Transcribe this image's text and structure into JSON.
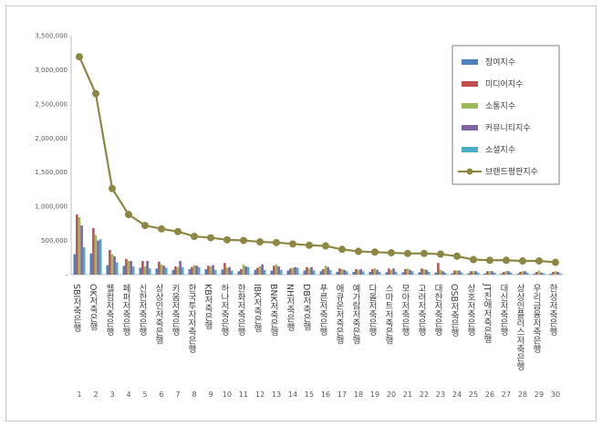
{
  "chart_data": {
    "type": "bar",
    "title": "",
    "xlabel": "",
    "ylabel": "",
    "ylim": [
      0,
      3500000
    ],
    "yticks": [
      0,
      500000,
      1000000,
      1500000,
      2000000,
      2500000,
      3000000,
      3500000
    ],
    "ytick_labels": [
      "-",
      "500,000",
      "1,000,000",
      "1,500,000",
      "2,000,000",
      "2,500,000",
      "3,000,000",
      "3,500,000"
    ],
    "grid": false,
    "legend_position": "top-right",
    "ranks": [
      "1",
      "2",
      "3",
      "4",
      "5",
      "6",
      "7",
      "8",
      "9",
      "10",
      "11",
      "12",
      "13",
      "14",
      "15",
      "16",
      "17",
      "18",
      "19",
      "20",
      "21",
      "22",
      "23",
      "24",
      "25",
      "26",
      "27",
      "28",
      "29",
      "30"
    ],
    "categories": [
      "SBI저축은행",
      "OK저축은행",
      "웰컴저축은행",
      "페퍼저축은행",
      "신한저축은행",
      "상상인저축은행",
      "키움저축은행",
      "한국투자저축은행",
      "KB저축은행",
      "하나저축은행",
      "한화저축은행",
      "IBK저축은행",
      "BNK저축은행",
      "NH저축은행",
      "DB저축은행",
      "푸른저축은행",
      "애큐온저축은행",
      "예가람저축은행",
      "다올저축은행",
      "스마트저축은행",
      "모아저축은행",
      "고려저축은행",
      "대한저축은행",
      "OSB저축은행",
      "상호저축은행",
      "JT친애저축은행",
      "대신저축은행",
      "상상인플러스저축은행",
      "우리금융저축은행",
      "한성저축은행"
    ],
    "series": [
      {
        "name": "참여지수",
        "color": "#4f81bd",
        "kind": "bar",
        "values": [
          300000,
          310000,
          140000,
          130000,
          100000,
          90000,
          70000,
          80000,
          80000,
          75000,
          50000,
          70000,
          60000,
          60000,
          60000,
          50000,
          40000,
          40000,
          40000,
          35000,
          35000,
          35000,
          30000,
          20000,
          20000,
          18000,
          18000,
          15000,
          15000,
          15000
        ]
      },
      {
        "name": "미디어지수",
        "color": "#c0504d",
        "kind": "bar",
        "values": [
          880000,
          680000,
          360000,
          230000,
          200000,
          190000,
          120000,
          110000,
          130000,
          170000,
          80000,
          100000,
          130000,
          90000,
          110000,
          80000,
          90000,
          80000,
          80000,
          90000,
          80000,
          90000,
          170000,
          60000,
          50000,
          50000,
          40000,
          40000,
          40000,
          40000
        ]
      },
      {
        "name": "소통지수",
        "color": "#9bbb59",
        "kind": "bar",
        "values": [
          840000,
          580000,
          300000,
          200000,
          120000,
          150000,
          110000,
          140000,
          120000,
          100000,
          150000,
          120000,
          150000,
          100000,
          90000,
          130000,
          80000,
          70000,
          90000,
          70000,
          90000,
          80000,
          70000,
          60000,
          50000,
          50000,
          50000,
          50000,
          60000,
          50000
        ]
      },
      {
        "name": "커뮤니티지수",
        "color": "#8064a2",
        "kind": "bar",
        "values": [
          720000,
          500000,
          270000,
          200000,
          200000,
          130000,
          200000,
          130000,
          140000,
          110000,
          120000,
          150000,
          120000,
          110000,
          110000,
          110000,
          70000,
          80000,
          70000,
          90000,
          70000,
          70000,
          50000,
          60000,
          50000,
          50000,
          50000,
          50000,
          30000,
          40000
        ]
      },
      {
        "name": "소셜지수",
        "color": "#4bacc6",
        "kind": "bar",
        "values": [
          400000,
          520000,
          180000,
          120000,
          90000,
          100000,
          110000,
          110000,
          70000,
          60000,
          110000,
          70000,
          70000,
          100000,
          60000,
          70000,
          50000,
          50000,
          40000,
          40000,
          50000,
          40000,
          30000,
          30000,
          30000,
          30000,
          30000,
          30000,
          20000,
          20000
        ]
      },
      {
        "name": "브랜드평판지수",
        "color": "#8c8743",
        "kind": "line",
        "values": [
          3190000,
          2650000,
          1260000,
          880000,
          720000,
          670000,
          630000,
          560000,
          540000,
          510000,
          500000,
          480000,
          470000,
          450000,
          430000,
          420000,
          370000,
          340000,
          330000,
          320000,
          310000,
          310000,
          300000,
          270000,
          220000,
          210000,
          210000,
          200000,
          200000,
          180000
        ]
      }
    ]
  }
}
